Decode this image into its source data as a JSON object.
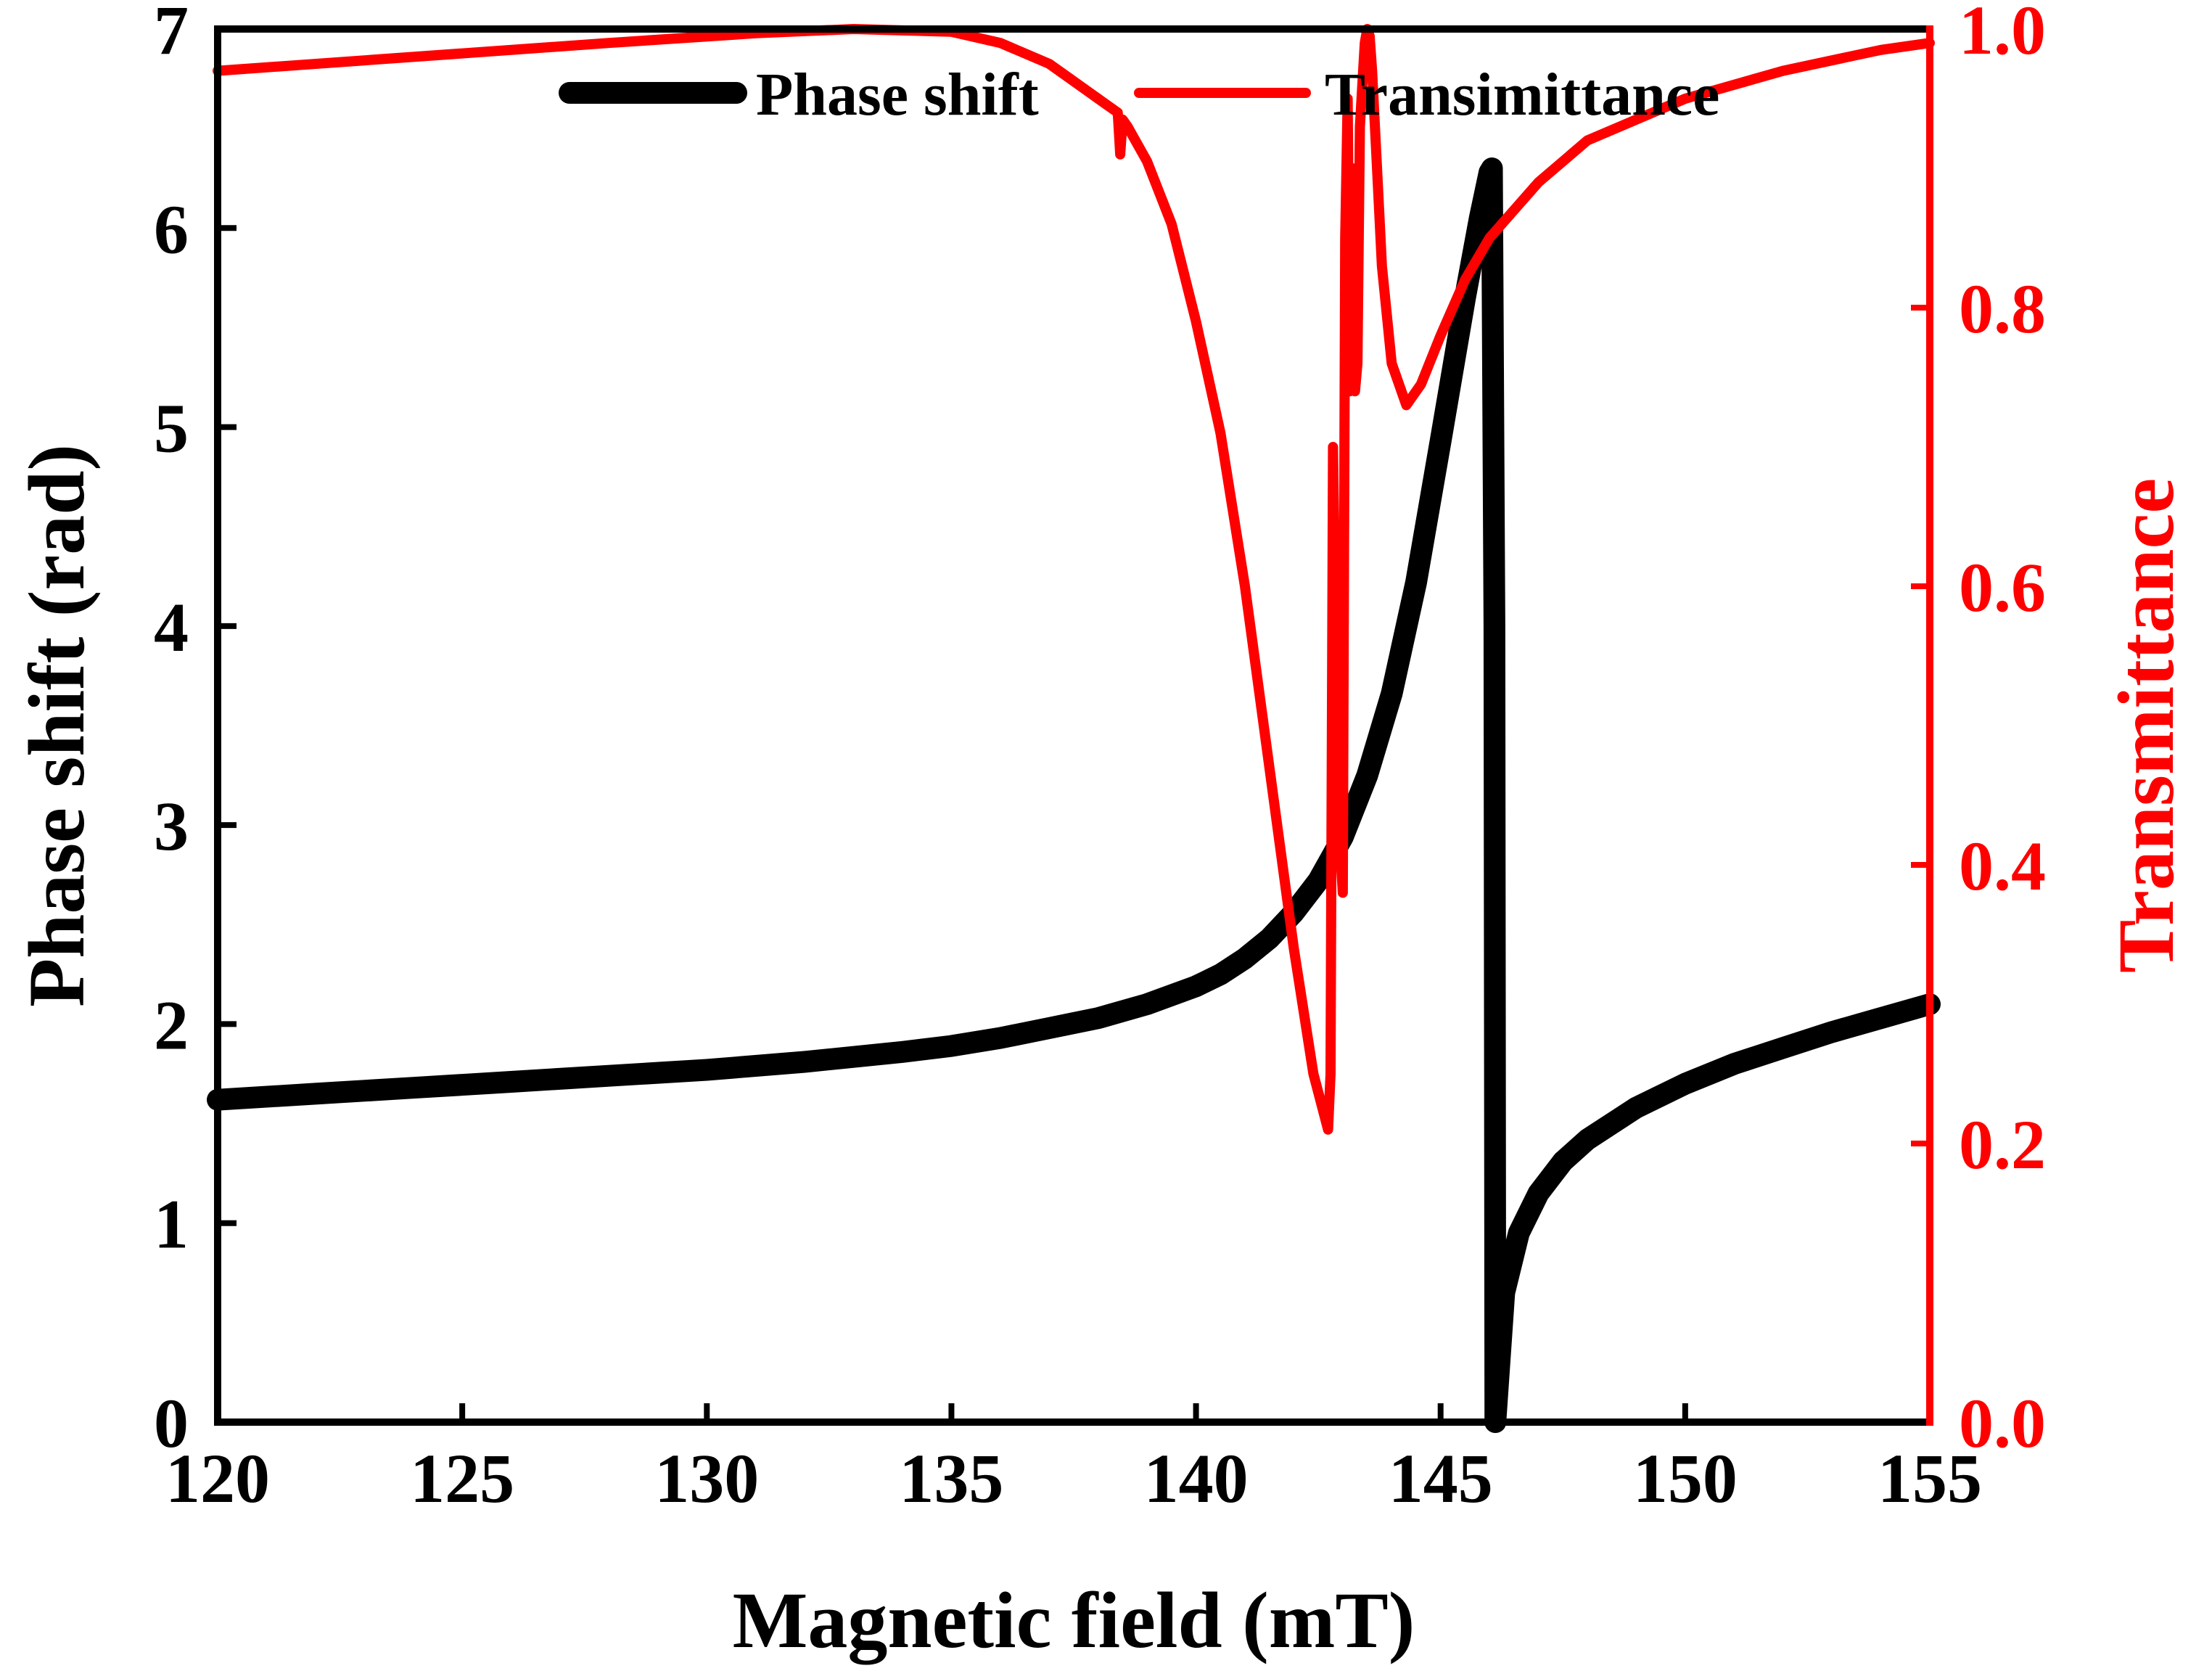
{
  "chart_data": {
    "type": "line",
    "xlabel": "Magnetic field (mT)",
    "ylabel_left": "Phase shift (rad)",
    "ylabel_right": "Transmittance",
    "xlim": [
      120,
      155
    ],
    "ylim_left": [
      0,
      7
    ],
    "ylim_right": [
      0,
      1.0
    ],
    "xticks": [
      "120",
      "125",
      "130",
      "135",
      "140",
      "145",
      "150",
      "155"
    ],
    "yticks_left": [
      "0",
      "1",
      "2",
      "3",
      "4",
      "5",
      "6",
      "7"
    ],
    "yticks_right": [
      "0.0",
      "0.2",
      "0.4",
      "0.6",
      "0.8",
      "1.0"
    ],
    "grid": false,
    "legend_position": "top",
    "colors": {
      "phase": "#000000",
      "transmittance": "#ff0000",
      "right_axis": "#ff0000"
    },
    "series": [
      {
        "name": "Phase shift",
        "axis": "left",
        "color": "#000000",
        "x": [
          120,
          122,
          124,
          126,
          128,
          130,
          132,
          134,
          135,
          136,
          137,
          138,
          139,
          140,
          140.5,
          141,
          141.5,
          142,
          142.5,
          143,
          143.5,
          144,
          144.5,
          145,
          145.5,
          145.8,
          146.0,
          146.05,
          146.1,
          146.12,
          146.3,
          146.6,
          147,
          147.5,
          148,
          149,
          150,
          151,
          152,
          153,
          154,
          155
        ],
        "values": [
          1.62,
          1.65,
          1.68,
          1.71,
          1.74,
          1.77,
          1.81,
          1.86,
          1.89,
          1.93,
          1.98,
          2.03,
          2.1,
          2.19,
          2.25,
          2.33,
          2.43,
          2.56,
          2.72,
          2.94,
          3.25,
          3.66,
          4.22,
          4.93,
          5.65,
          6.05,
          6.28,
          6.3,
          4.0,
          0.0,
          0.65,
          0.95,
          1.15,
          1.31,
          1.42,
          1.58,
          1.7,
          1.8,
          1.88,
          1.96,
          2.03,
          2.1
        ]
      },
      {
        "name": "Transimittance",
        "axis": "right",
        "color": "#ff0000",
        "x": [
          120,
          124,
          128,
          131,
          133,
          135,
          136,
          137,
          138,
          138.4,
          138.45,
          138.5,
          138.6,
          139,
          139.5,
          140,
          140.5,
          141,
          141.5,
          142,
          142.4,
          142.7,
          142.75,
          142.8,
          142.9,
          143.0,
          143.05,
          143.1,
          143.15,
          143.2,
          143.25,
          143.3,
          143.35,
          143.4,
          143.45,
          143.5,
          143.55,
          143.6,
          143.7,
          143.8,
          144.0,
          144.3,
          144.6,
          145.0,
          145.5,
          146,
          147,
          148,
          150,
          152,
          154,
          155
        ],
        "values": [
          0.97,
          0.98,
          0.99,
          0.997,
          1.0,
          0.998,
          0.99,
          0.975,
          0.95,
          0.94,
          0.91,
          0.935,
          0.93,
          0.905,
          0.86,
          0.79,
          0.71,
          0.6,
          0.47,
          0.34,
          0.25,
          0.21,
          0.25,
          0.7,
          0.44,
          0.38,
          0.85,
          0.95,
          0.74,
          0.9,
          0.74,
          0.76,
          0.93,
          0.96,
          0.99,
          1.0,
          0.995,
          0.97,
          0.9,
          0.83,
          0.76,
          0.73,
          0.745,
          0.78,
          0.82,
          0.85,
          0.89,
          0.92,
          0.95,
          0.97,
          0.985,
          0.99
        ]
      }
    ]
  }
}
